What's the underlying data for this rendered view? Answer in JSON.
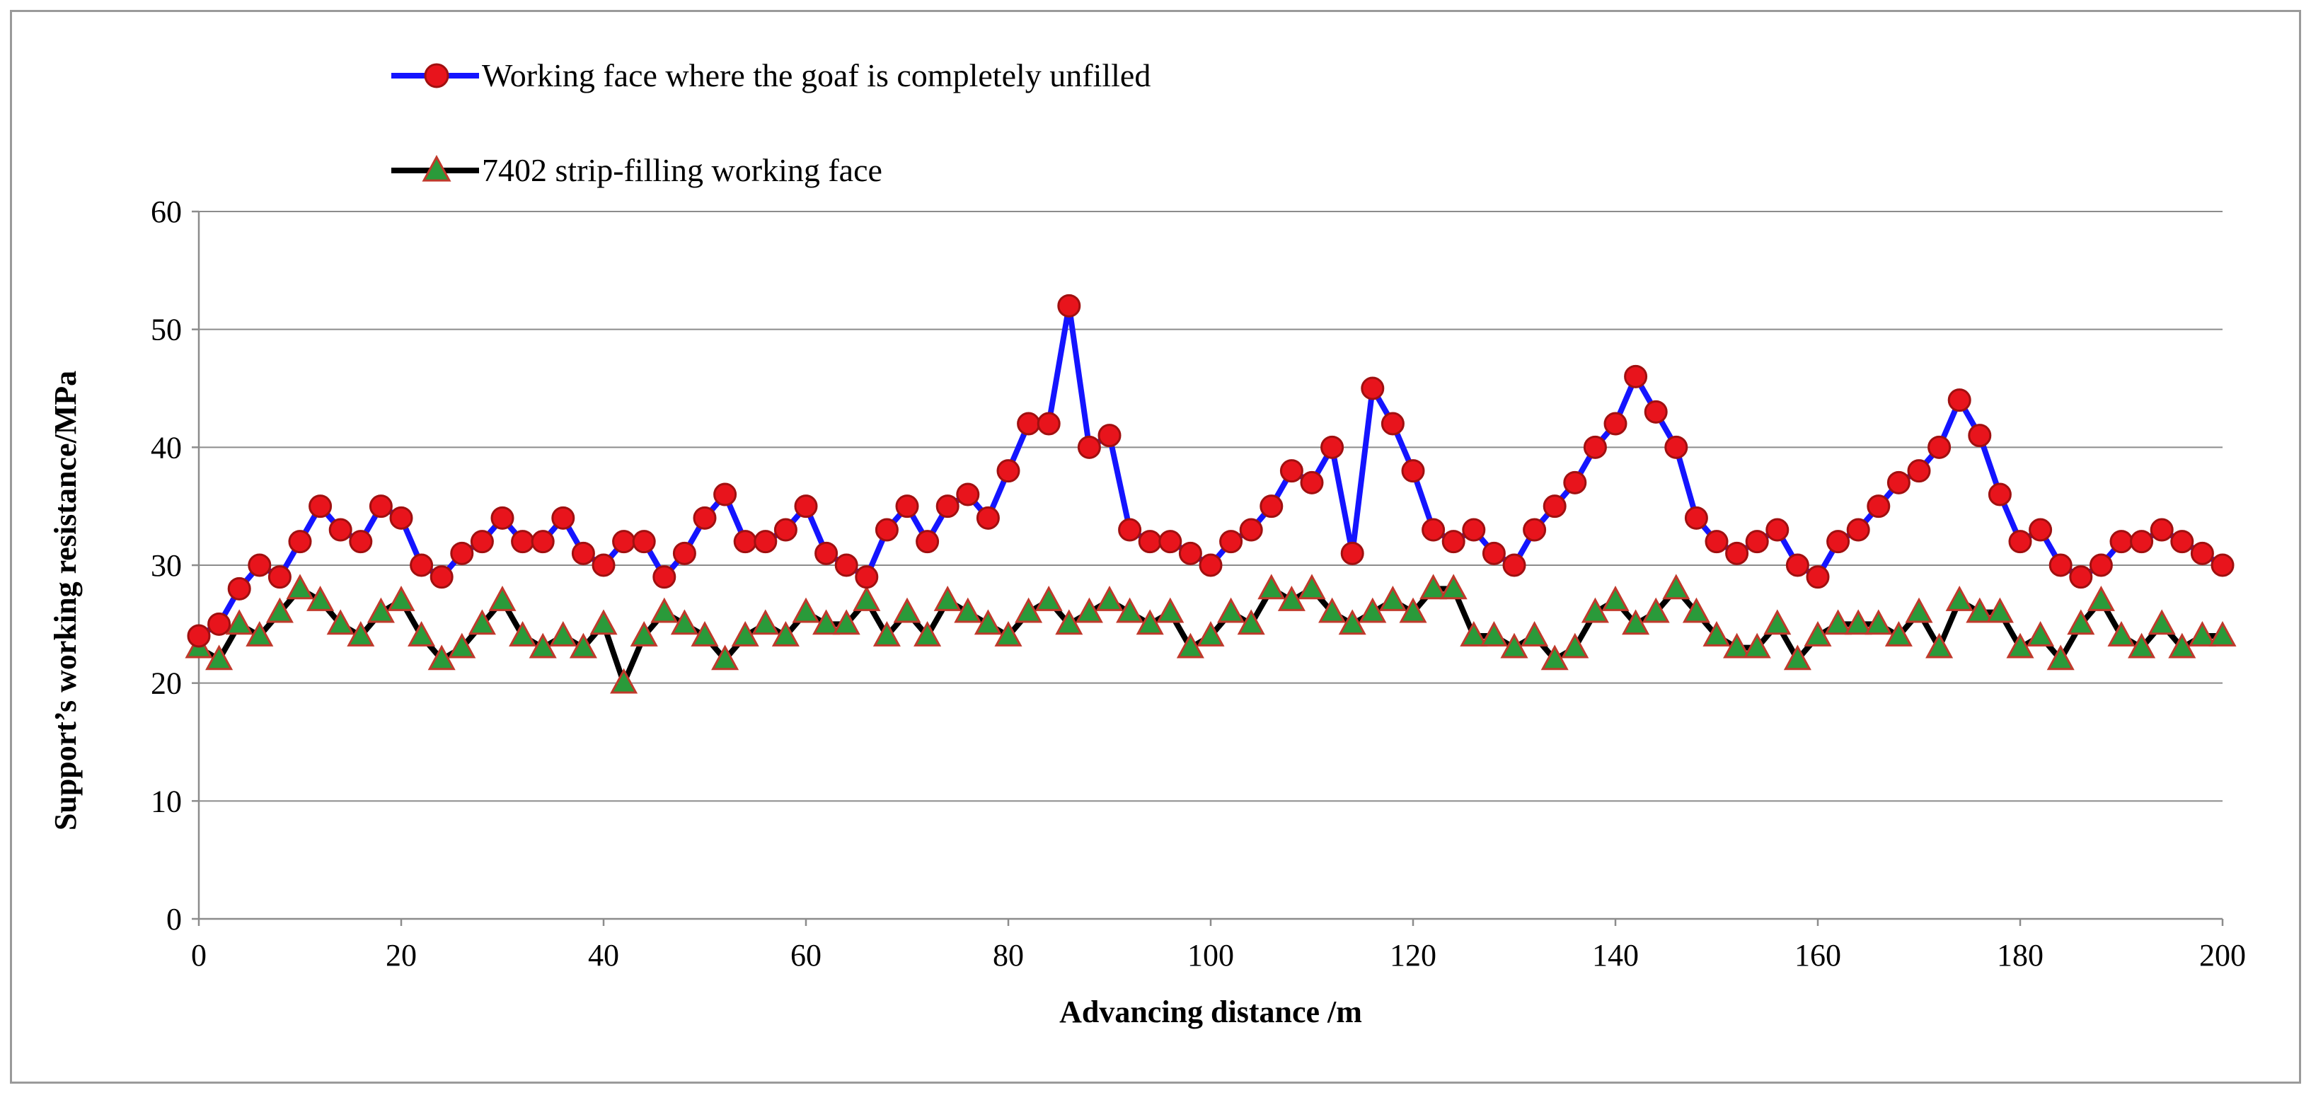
{
  "chart_data": {
    "type": "line",
    "title": "",
    "xlabel": "Advancing distance /m",
    "ylabel": "Support’s working resistance/MPa",
    "xlim": [
      0,
      200
    ],
    "ylim": [
      0,
      60
    ],
    "x_ticks": [
      0,
      20,
      40,
      60,
      80,
      100,
      120,
      140,
      160,
      180,
      200
    ],
    "y_ticks": [
      0,
      10,
      20,
      30,
      40,
      50,
      60
    ],
    "grid": "horizontal",
    "legend_position": "top-left",
    "x": [
      0,
      2,
      4,
      6,
      8,
      10,
      12,
      14,
      16,
      18,
      20,
      22,
      24,
      26,
      28,
      30,
      32,
      34,
      36,
      38,
      40,
      42,
      44,
      46,
      48,
      50,
      52,
      54,
      56,
      58,
      60,
      62,
      64,
      66,
      68,
      70,
      72,
      74,
      76,
      78,
      80,
      82,
      84,
      86,
      88,
      90,
      92,
      94,
      96,
      98,
      100,
      102,
      104,
      106,
      108,
      110,
      112,
      114,
      116,
      118,
      120,
      122,
      124,
      126,
      128,
      130,
      132,
      134,
      136,
      138,
      140,
      142,
      144,
      146,
      148,
      150,
      152,
      154,
      156,
      158,
      160,
      162,
      164,
      166,
      168,
      170,
      172,
      174,
      176,
      178,
      180,
      182,
      184,
      186,
      188,
      190,
      192,
      194,
      196,
      198,
      200
    ],
    "series": [
      {
        "name": "Working face where the goaf is completely unfilled",
        "line_color": "#1414ff",
        "marker": "circle",
        "marker_fill": "#e8141c",
        "marker_stroke": "#a01010",
        "values": [
          24,
          25,
          28,
          30,
          29,
          32,
          35,
          33,
          32,
          35,
          34,
          30,
          29,
          31,
          32,
          34,
          32,
          32,
          34,
          31,
          30,
          32,
          32,
          29,
          31,
          34,
          36,
          32,
          32,
          33,
          35,
          31,
          30,
          29,
          33,
          35,
          32,
          35,
          36,
          34,
          38,
          42,
          42,
          52,
          40,
          41,
          33,
          32,
          32,
          31,
          30,
          32,
          33,
          35,
          38,
          37,
          40,
          31,
          45,
          42,
          38,
          33,
          32,
          33,
          31,
          30,
          33,
          35,
          37,
          40,
          42,
          46,
          43,
          40,
          34,
          32,
          31,
          32,
          33,
          30,
          29,
          32,
          33,
          35,
          37,
          38,
          40,
          44,
          41,
          36,
          32,
          33,
          30,
          29,
          30,
          32,
          32,
          33,
          32,
          31,
          30
        ]
      },
      {
        "name": "7402 strip-filling working face",
        "line_color": "#000000",
        "marker": "triangle",
        "marker_fill": "#2a9a3a",
        "marker_stroke": "#c0392b",
        "values": [
          23,
          22,
          25,
          24,
          26,
          28,
          27,
          25,
          24,
          26,
          27,
          24,
          22,
          23,
          25,
          27,
          24,
          23,
          24,
          23,
          25,
          20,
          24,
          26,
          25,
          24,
          22,
          24,
          25,
          24,
          26,
          25,
          25,
          27,
          24,
          26,
          24,
          27,
          26,
          25,
          24,
          26,
          27,
          25,
          26,
          27,
          26,
          25,
          26,
          23,
          24,
          26,
          25,
          28,
          27,
          28,
          26,
          25,
          26,
          27,
          26,
          28,
          28,
          24,
          24,
          23,
          24,
          22,
          23,
          26,
          27,
          25,
          26,
          28,
          26,
          24,
          23,
          23,
          25,
          22,
          24,
          25,
          25,
          25,
          24,
          26,
          23,
          27,
          26,
          26,
          23,
          24,
          22,
          25,
          27,
          24,
          23,
          25,
          23,
          24,
          24
        ]
      }
    ]
  }
}
